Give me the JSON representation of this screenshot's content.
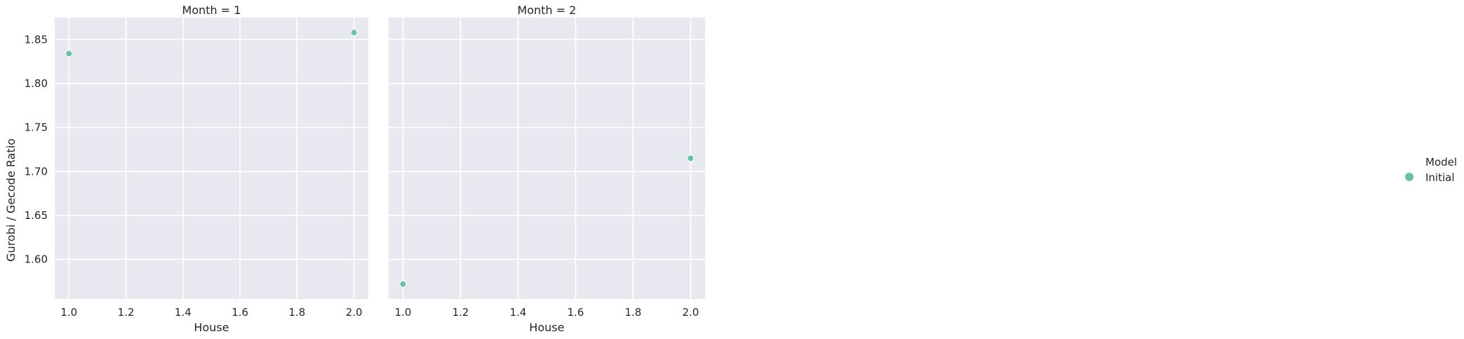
{
  "chart_data": {
    "type": "scatter",
    "y_label": "Gurobi / Gecode Ratio",
    "x_label": "House",
    "legend": {
      "title": "Model",
      "placement": "right",
      "entries": [
        {
          "name": "Initial",
          "color": "#66c2a5"
        }
      ]
    },
    "style": {
      "background": "#e8e8f0",
      "grid": true,
      "grid_color": "#ffffff",
      "marker_color": "#66c2a5"
    },
    "ylim": [
      1.555,
      1.875
    ],
    "xlim": [
      0.95,
      2.05
    ],
    "x_ticks": [
      1.0,
      1.2,
      1.4,
      1.6,
      1.8,
      2.0
    ],
    "x_tick_labels": [
      "1.0",
      "1.2",
      "1.4",
      "1.6",
      "1.8",
      "2.0"
    ],
    "y_ticks": [
      1.6,
      1.65,
      1.7,
      1.75,
      1.8,
      1.85
    ],
    "y_tick_labels": [
      "1.60",
      "1.65",
      "1.70",
      "1.75",
      "1.80",
      "1.85"
    ],
    "panels": [
      {
        "title": "Month = 1",
        "series": [
          {
            "name": "Initial",
            "points": [
              {
                "x": 1.0,
                "y": 1.834
              },
              {
                "x": 2.0,
                "y": 1.858
              }
            ]
          }
        ]
      },
      {
        "title": "Month = 2",
        "series": [
          {
            "name": "Initial",
            "points": [
              {
                "x": 1.0,
                "y": 1.572
              },
              {
                "x": 2.0,
                "y": 1.715
              }
            ]
          }
        ]
      }
    ]
  }
}
